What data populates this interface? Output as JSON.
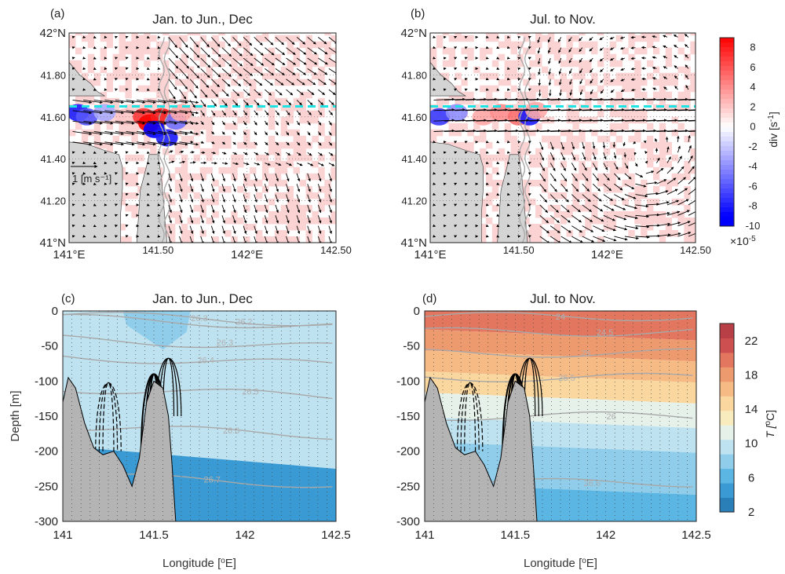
{
  "chart_data": [
    {
      "id": "a",
      "type": "heatmap",
      "panel_label": "(a)",
      "title": "Jan. to Jun., Dec",
      "xlim": [
        141,
        142.5
      ],
      "ylim": [
        41,
        42
      ],
      "x_ticks": [
        {
          "value": 141,
          "label": "141°E"
        },
        {
          "value": 141.5,
          "label": "141.50"
        },
        {
          "value": 142,
          "label": "142°E"
        },
        {
          "value": 142.5,
          "label": "142.50"
        }
      ],
      "y_ticks": [
        {
          "value": 41,
          "label": "41°N"
        },
        {
          "value": 41.2,
          "label": "41.20"
        },
        {
          "value": 41.4,
          "label": "41.40"
        },
        {
          "value": 41.6,
          "label": "41.60"
        },
        {
          "value": 41.8,
          "label": "41.80"
        },
        {
          "value": 42,
          "label": "42°N"
        }
      ],
      "section_line_lat": 41.65,
      "reference_vector": "1 [m s⁻¹]",
      "divergence_cells": [
        {
          "lon": 141.05,
          "lat": 41.62,
          "value": -8
        },
        {
          "lon": 141.1,
          "lat": 41.6,
          "value": -6
        },
        {
          "lon": 141.2,
          "lat": 41.62,
          "value": -3
        },
        {
          "lon": 141.32,
          "lat": 41.6,
          "value": 2
        },
        {
          "lon": 141.42,
          "lat": 41.6,
          "value": 7
        },
        {
          "lon": 141.45,
          "lat": 41.57,
          "value": 9
        },
        {
          "lon": 141.52,
          "lat": 41.6,
          "value": 8
        },
        {
          "lon": 141.48,
          "lat": 41.54,
          "value": -9
        },
        {
          "lon": 141.55,
          "lat": 41.5,
          "value": -8
        },
        {
          "lon": 141.6,
          "lat": 41.58,
          "value": -5
        },
        {
          "lon": 141.63,
          "lat": 41.62,
          "value": 3
        }
      ],
      "flow_regime": "westward inflow through strait, fan-out east of 141.6°E"
    },
    {
      "id": "b",
      "type": "heatmap",
      "panel_label": "(b)",
      "title": "Jul. to Nov.",
      "xlim": [
        141,
        142.5
      ],
      "ylim": [
        41,
        42
      ],
      "x_ticks": [
        {
          "value": 141,
          "label": "141°E"
        },
        {
          "value": 141.5,
          "label": "141.50"
        },
        {
          "value": 142,
          "label": "142°E"
        },
        {
          "value": 142.5,
          "label": "142.50"
        }
      ],
      "y_ticks": [
        {
          "value": 41,
          "label": "41°N"
        },
        {
          "value": 41.2,
          "label": "41.20"
        },
        {
          "value": 41.4,
          "label": "41.40"
        },
        {
          "value": 41.6,
          "label": "41.60"
        },
        {
          "value": 41.8,
          "label": "41.80"
        },
        {
          "value": 42,
          "label": "42°N"
        }
      ],
      "section_line_lat": 41.65,
      "divergence_cells": [
        {
          "lon": 141.05,
          "lat": 41.6,
          "value": -7
        },
        {
          "lon": 141.15,
          "lat": 41.62,
          "value": -4
        },
        {
          "lon": 141.3,
          "lat": 41.6,
          "value": 3
        },
        {
          "lon": 141.4,
          "lat": 41.62,
          "value": 4
        },
        {
          "lon": 141.5,
          "lat": 41.6,
          "value": 5
        },
        {
          "lon": 141.56,
          "lat": 41.6,
          "value": -8
        },
        {
          "lon": 141.6,
          "lat": 41.63,
          "value": 3
        }
      ],
      "flow_regime": "eastward jet near 41.6°N with anticyclonic eddy near 142.2°E, 41.35°N"
    },
    {
      "id": "c",
      "type": "heatmap",
      "panel_label": "(c)",
      "title": "Jan. to Jun., Dec",
      "xlabel": "Longitude [°E]",
      "ylabel": "Depth [m]",
      "xlim": [
        141,
        142.5
      ],
      "ylim": [
        -300,
        0
      ],
      "x_ticks": [
        141,
        141.5,
        142,
        142.5
      ],
      "y_ticks": [
        0,
        -50,
        -100,
        -150,
        -200,
        -250,
        -300
      ],
      "isopycnals": [
        {
          "label": "26.3",
          "depth": -10
        },
        {
          "label": "26.2",
          "depth": -15
        },
        {
          "label": "26.3",
          "depth": -45
        },
        {
          "label": "26.4",
          "depth": -70
        },
        {
          "label": "26.5",
          "depth": -115
        },
        {
          "label": "26.6",
          "depth": -170
        },
        {
          "label": "26.7",
          "depth": -240
        }
      ],
      "temperature_bands": [
        {
          "depth_top": 0,
          "temp": 9
        },
        {
          "depth_top": -200,
          "temp": 5
        }
      ]
    },
    {
      "id": "d",
      "type": "heatmap",
      "panel_label": "(d)",
      "title": "Jul. to Nov.",
      "xlabel": "Longitude [°E]",
      "xlim": [
        141,
        142.5
      ],
      "ylim": [
        -300,
        0
      ],
      "x_ticks": [
        141,
        141.5,
        142,
        142.5
      ],
      "y_ticks": [
        0,
        -50,
        -100,
        -150,
        -200,
        -250,
        -300
      ],
      "isopycnals": [
        {
          "label": "24",
          "depth": -8
        },
        {
          "label": "24.5",
          "depth": -30
        },
        {
          "label": "25",
          "depth": -60
        },
        {
          "label": "25.5",
          "depth": -95
        },
        {
          "label": "26",
          "depth": -150
        },
        {
          "label": "26.5",
          "depth": -245
        }
      ],
      "temperature_bands": [
        {
          "depth_top": 0,
          "temp": 20
        },
        {
          "depth_top": -30,
          "temp": 18
        },
        {
          "depth_top": -60,
          "temp": 16
        },
        {
          "depth_top": -90,
          "temp": 14
        },
        {
          "depth_top": -120,
          "temp": 12
        },
        {
          "depth_top": -155,
          "temp": 10
        },
        {
          "depth_top": -190,
          "temp": 8
        },
        {
          "depth_top": -250,
          "temp": 6
        }
      ]
    }
  ],
  "colorbars": {
    "div": {
      "label_text": "div [s",
      "label_sup": "-1",
      "label_close": "]",
      "ticks": [
        "8",
        "6",
        "4",
        "2",
        "0",
        "-2",
        "-4",
        "-6",
        "-8",
        "-10"
      ],
      "range": [
        -10,
        9
      ],
      "multiplier": "×10",
      "multiplier_exp": "-5",
      "colors": {
        "neg": "#0000ff",
        "zero": "#ffffff",
        "pos": "#ff0000"
      }
    },
    "temp": {
      "label_text": "T [",
      "label_sup": "o",
      "label_close": "C]",
      "ticks": [
        "22",
        "18",
        "14",
        "10",
        "6",
        "2"
      ],
      "range": [
        2,
        24
      ],
      "colors": [
        "#2b7fb8",
        "#3a9bd4",
        "#5cb6e3",
        "#8fcdea",
        "#bfe2f0",
        "#e5f1e9",
        "#f8ecbe",
        "#f9d79f",
        "#f6bb85",
        "#ee9a6f",
        "#e3765f",
        "#cd4f4f",
        "#b83f46"
      ]
    }
  },
  "axis_labels": {
    "x_c": "Longitude [",
    "x_c_sup": "o",
    "x_c_end": "E]",
    "y_c": "Depth [m]"
  },
  "colors": {
    "land": "#d4d4d4",
    "bathymetry": "#b4b4b4",
    "section_line": "#1fe3e3",
    "contour": "#a8a8a8"
  }
}
